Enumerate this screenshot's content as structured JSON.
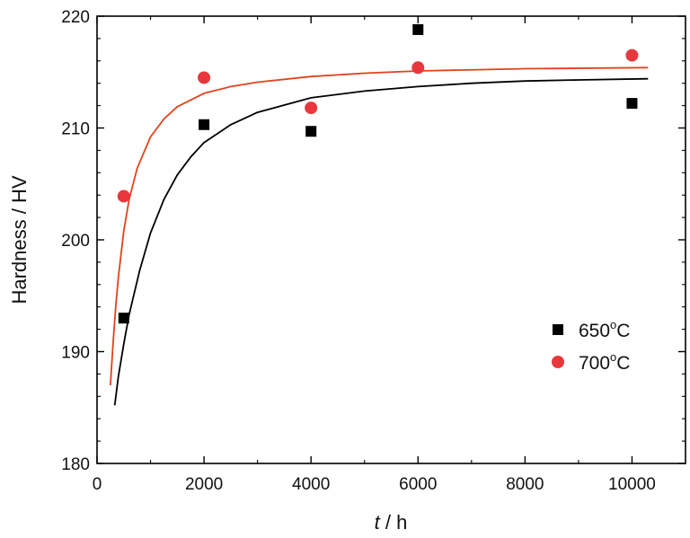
{
  "chart_data": {
    "type": "scatter",
    "xlabel_symbol": "t",
    "xlabel_unit": " / h",
    "ylabel": "Hardness / HV",
    "xlim": [
      0,
      11000
    ],
    "ylim": [
      180,
      220
    ],
    "xticks": [
      0,
      2000,
      4000,
      6000,
      8000,
      10000
    ],
    "yticks": [
      180,
      190,
      200,
      210,
      220
    ],
    "x_tick_labels": [
      "0",
      "2000",
      "4000",
      "6000",
      "8000",
      "10000"
    ],
    "y_tick_labels": [
      "180",
      "190",
      "200",
      "210",
      "220"
    ],
    "legend_position": "lower-right",
    "series": [
      {
        "name_base": "650",
        "name_sup": "o",
        "name_suffix": "C",
        "marker": "square",
        "color": "#000000",
        "line_color": "#000000",
        "points": [
          {
            "x": 500,
            "y": 193.0
          },
          {
            "x": 2000,
            "y": 210.3
          },
          {
            "x": 4000,
            "y": 209.7
          },
          {
            "x": 6000,
            "y": 218.8
          },
          {
            "x": 10000,
            "y": 212.2
          }
        ],
        "fit": [
          {
            "x": 330,
            "y": 185.2
          },
          {
            "x": 400,
            "y": 187.8
          },
          {
            "x": 500,
            "y": 190.7
          },
          {
            "x": 600,
            "y": 193.3
          },
          {
            "x": 800,
            "y": 197.3
          },
          {
            "x": 1000,
            "y": 200.6
          },
          {
            "x": 1250,
            "y": 203.6
          },
          {
            "x": 1500,
            "y": 205.8
          },
          {
            "x": 1750,
            "y": 207.4
          },
          {
            "x": 2000,
            "y": 208.7
          },
          {
            "x": 2500,
            "y": 210.3
          },
          {
            "x": 3000,
            "y": 211.4
          },
          {
            "x": 4000,
            "y": 212.7
          },
          {
            "x": 5000,
            "y": 213.3
          },
          {
            "x": 6000,
            "y": 213.7
          },
          {
            "x": 7000,
            "y": 214.0
          },
          {
            "x": 8000,
            "y": 214.2
          },
          {
            "x": 9000,
            "y": 214.3
          },
          {
            "x": 10300,
            "y": 214.4
          }
        ]
      },
      {
        "name_base": "700",
        "name_sup": "o",
        "name_suffix": "C",
        "marker": "circle",
        "color": "#e8383d",
        "line_color": "#e0421c",
        "points": [
          {
            "x": 500,
            "y": 203.9
          },
          {
            "x": 2000,
            "y": 214.5
          },
          {
            "x": 4000,
            "y": 211.8
          },
          {
            "x": 6000,
            "y": 215.4
          },
          {
            "x": 10000,
            "y": 216.5
          }
        ],
        "fit": [
          {
            "x": 250,
            "y": 187.0
          },
          {
            "x": 300,
            "y": 190.8
          },
          {
            "x": 350,
            "y": 194.0
          },
          {
            "x": 400,
            "y": 196.7
          },
          {
            "x": 500,
            "y": 200.8
          },
          {
            "x": 600,
            "y": 203.6
          },
          {
            "x": 750,
            "y": 206.4
          },
          {
            "x": 1000,
            "y": 209.2
          },
          {
            "x": 1250,
            "y": 210.8
          },
          {
            "x": 1500,
            "y": 211.9
          },
          {
            "x": 2000,
            "y": 213.1
          },
          {
            "x": 2500,
            "y": 213.7
          },
          {
            "x": 3000,
            "y": 214.1
          },
          {
            "x": 4000,
            "y": 214.6
          },
          {
            "x": 5000,
            "y": 214.9
          },
          {
            "x": 6000,
            "y": 215.1
          },
          {
            "x": 8000,
            "y": 215.3
          },
          {
            "x": 10300,
            "y": 215.4
          }
        ]
      }
    ]
  }
}
